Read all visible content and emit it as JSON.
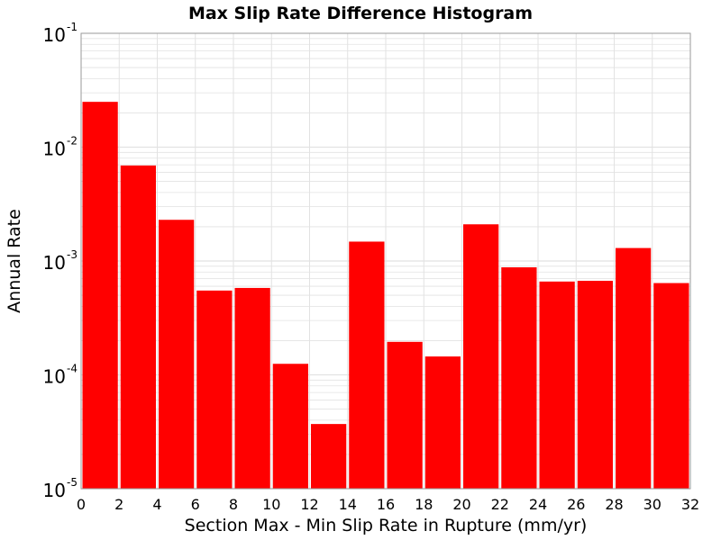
{
  "chart_data": {
    "type": "bar",
    "title": "Max Slip Rate Difference Histogram",
    "xlabel": "Section Max - Min Slip Rate in Rupture (mm/yr)",
    "ylabel": "Annual Rate",
    "y_scale": "log",
    "xlim": [
      0,
      32
    ],
    "ylim": [
      1e-05,
      0.1
    ],
    "bin_width": 2,
    "x_ticks": [
      "0",
      "2",
      "4",
      "6",
      "8",
      "10",
      "12",
      "14",
      "16",
      "18",
      "20",
      "22",
      "24",
      "26",
      "28",
      "30",
      "32"
    ],
    "y_ticks": [
      {
        "base": "10",
        "exp": "-5",
        "value": 1e-05
      },
      {
        "base": "10",
        "exp": "-4",
        "value": 0.0001
      },
      {
        "base": "10",
        "exp": "-3",
        "value": 0.001
      },
      {
        "base": "10",
        "exp": "-2",
        "value": 0.01
      },
      {
        "base": "10",
        "exp": "-1",
        "value": 0.1
      }
    ],
    "bins": [
      {
        "x": 1,
        "value": 0.025
      },
      {
        "x": 3,
        "value": 0.0069
      },
      {
        "x": 5,
        "value": 0.0023
      },
      {
        "x": 7,
        "value": 0.00055
      },
      {
        "x": 9,
        "value": 0.00058
      },
      {
        "x": 11,
        "value": 0.000125
      },
      {
        "x": 13,
        "value": 3.7e-05
      },
      {
        "x": 15,
        "value": 0.00148
      },
      {
        "x": 17,
        "value": 0.000195
      },
      {
        "x": 19,
        "value": 0.000145
      },
      {
        "x": 21,
        "value": 0.0021
      },
      {
        "x": 23,
        "value": 0.00088
      },
      {
        "x": 25,
        "value": 0.00066
      },
      {
        "x": 27,
        "value": 0.00067
      },
      {
        "x": 29,
        "value": 0.0013
      },
      {
        "x": 31,
        "value": 0.00064
      }
    ],
    "grid": true,
    "legend": "none",
    "colors": {
      "bar": "#ff0000",
      "grid": "#e2e2e2",
      "axis": "#9a9a9a"
    }
  }
}
